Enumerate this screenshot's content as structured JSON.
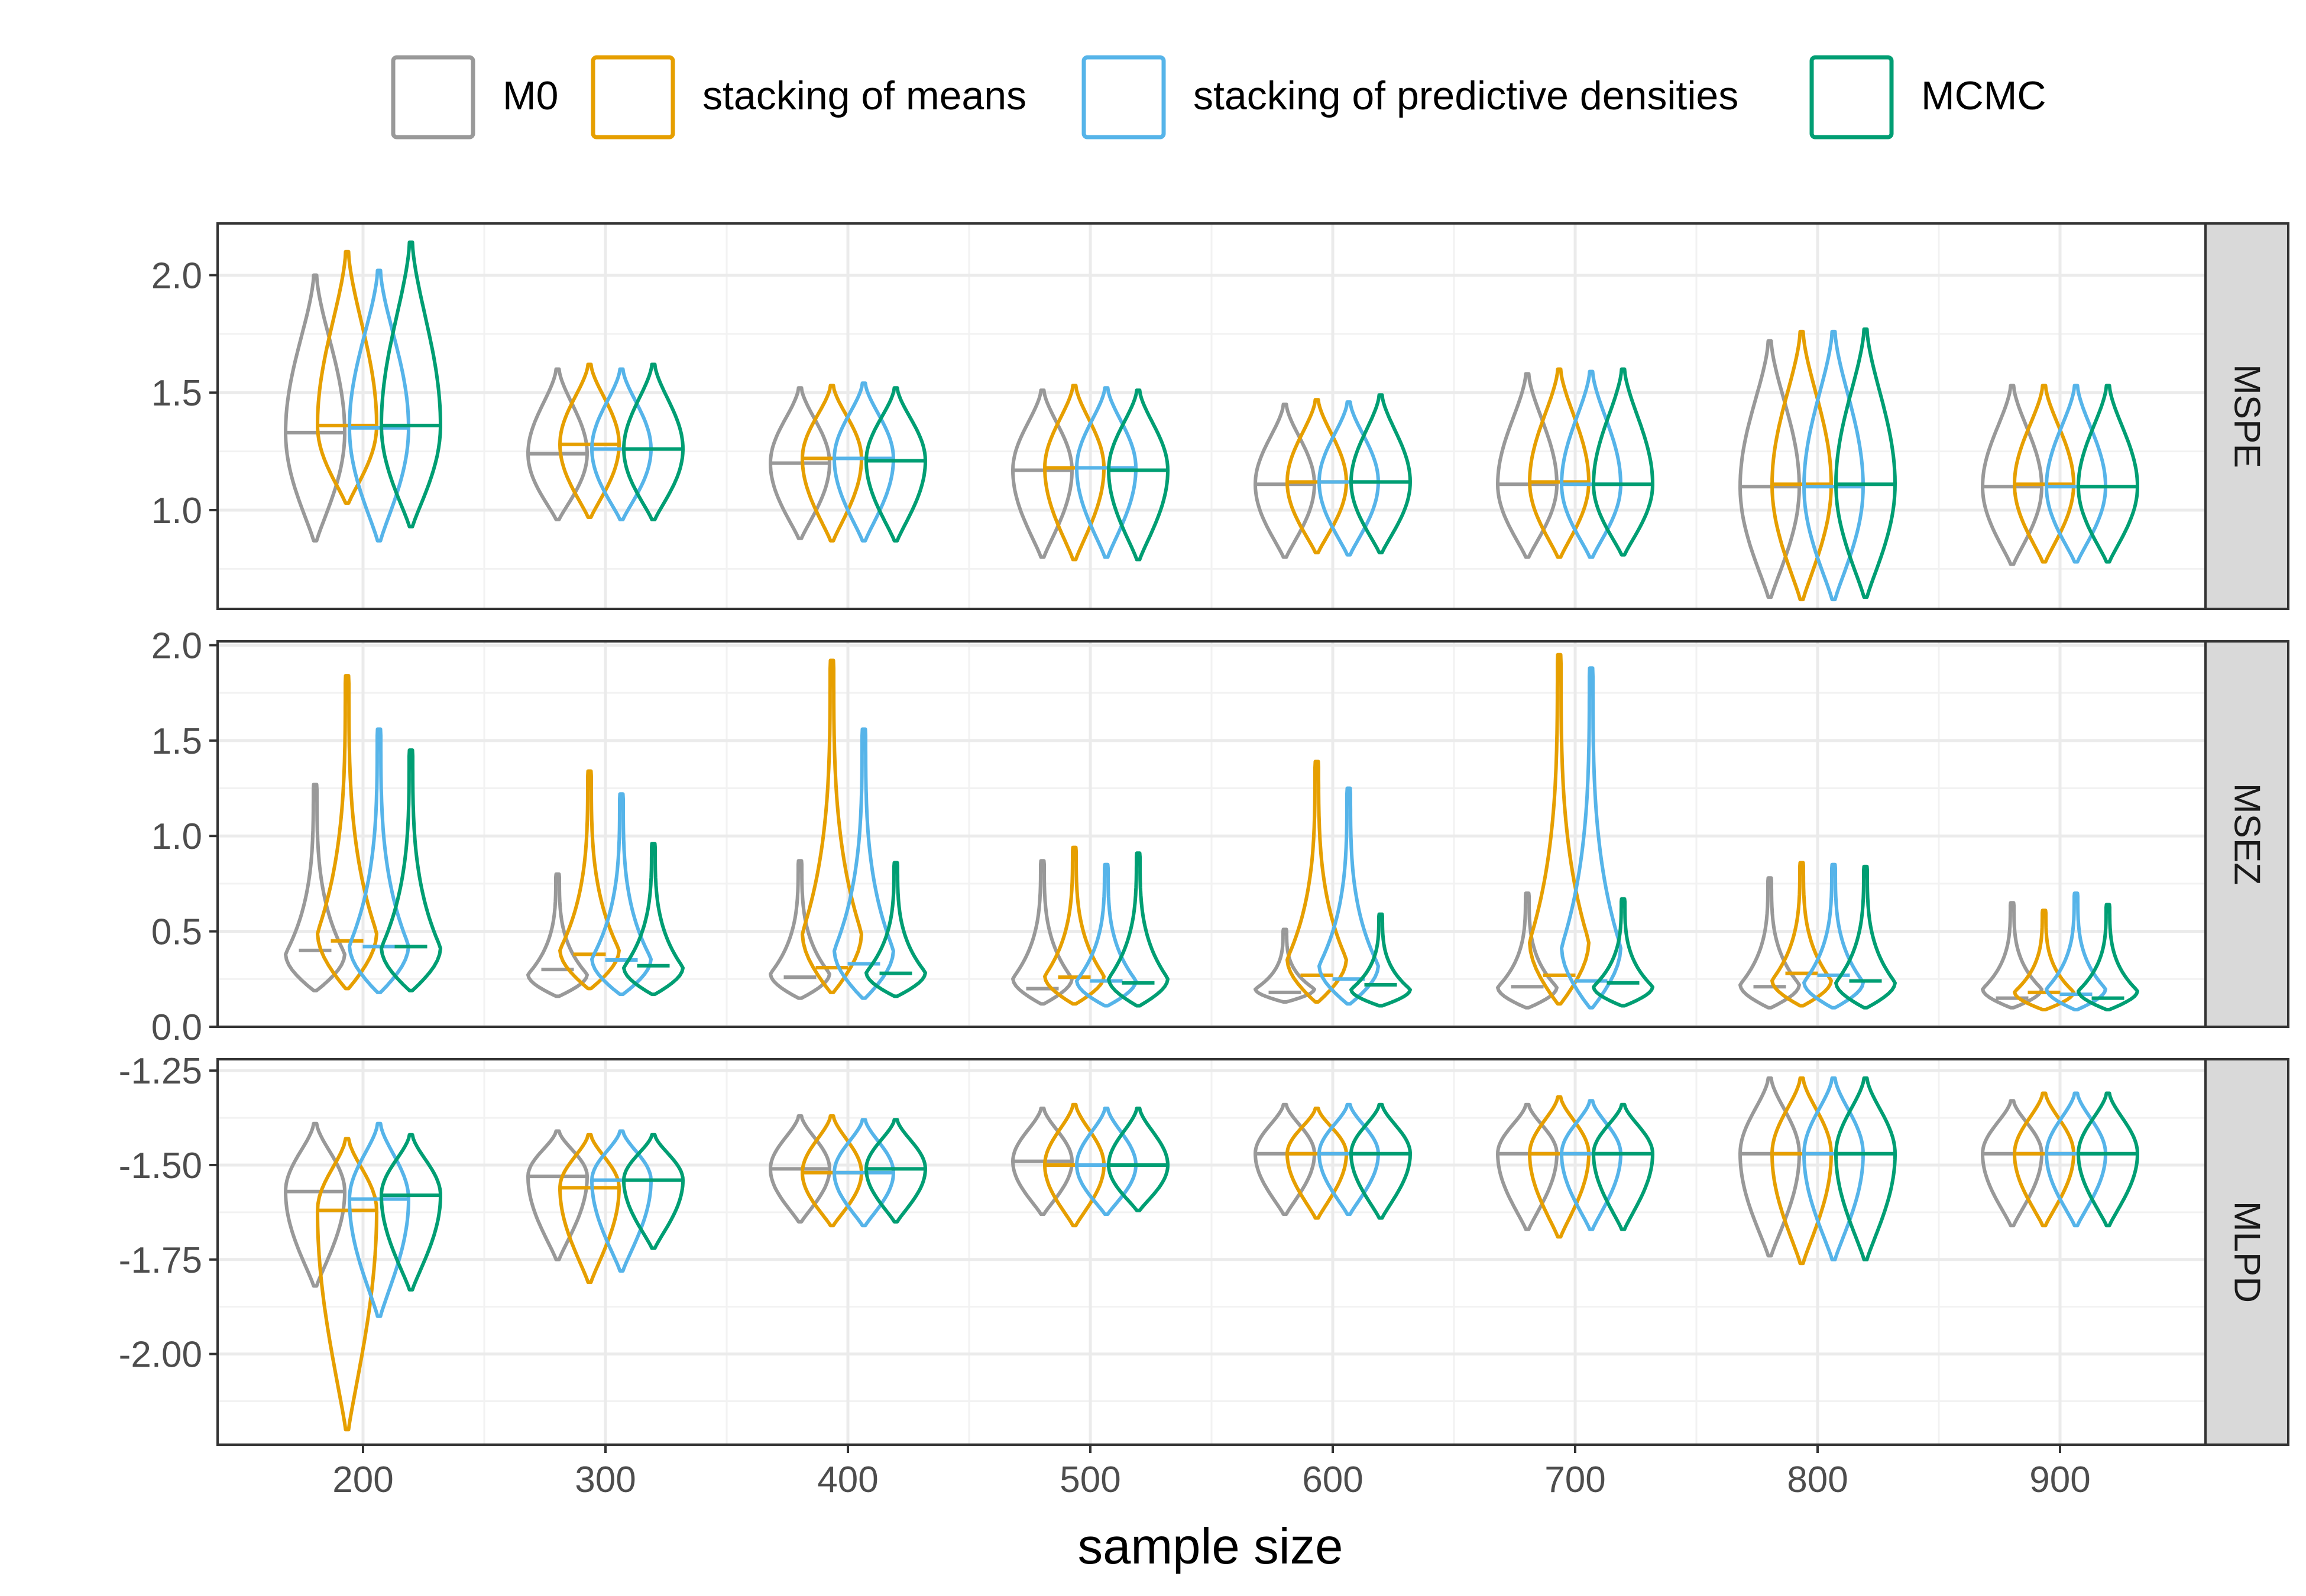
{
  "chart_data": {
    "type": "violin",
    "xlabel": "sample size",
    "ylabel": "",
    "x_ticks": [
      "200",
      "300",
      "400",
      "500",
      "600",
      "700",
      "800",
      "900"
    ],
    "x_range": [
      140,
      960
    ],
    "sample_sizes": [
      200,
      300,
      400,
      500,
      600,
      700,
      800,
      900
    ],
    "legend": {
      "position": "top",
      "entries": [
        {
          "name": "M0",
          "color": "#999999"
        },
        {
          "name": "stacking of means",
          "color": "#E69F00"
        },
        {
          "name": "stacking of predictive densities",
          "color": "#56B4E9"
        },
        {
          "name": "MCMC",
          "color": "#009E73"
        }
      ]
    },
    "panels": [
      {
        "strip": "MSPE",
        "ylim": [
          0.58,
          2.22
        ],
        "y_ticks": [
          "1.0",
          "1.5",
          "2.0"
        ],
        "y_tick_values": [
          1.0,
          1.5,
          2.0
        ],
        "shape": "symmetric",
        "series": [
          {
            "name": "M0",
            "median": [
              1.33,
              1.24,
              1.2,
              1.17,
              1.11,
              1.11,
              1.1,
              1.1
            ],
            "min": [
              0.87,
              0.96,
              0.88,
              0.8,
              0.8,
              0.8,
              0.63,
              0.77
            ],
            "max": [
              2.0,
              1.6,
              1.52,
              1.51,
              1.45,
              1.58,
              1.72,
              1.53
            ]
          },
          {
            "name": "stacking of means",
            "median": [
              1.36,
              1.28,
              1.22,
              1.18,
              1.12,
              1.12,
              1.11,
              1.11
            ],
            "min": [
              1.03,
              0.97,
              0.87,
              0.79,
              0.82,
              0.8,
              0.62,
              0.78
            ],
            "max": [
              2.1,
              1.62,
              1.53,
              1.53,
              1.47,
              1.6,
              1.76,
              1.53
            ]
          },
          {
            "name": "stacking of predictive densities",
            "median": [
              1.35,
              1.26,
              1.22,
              1.18,
              1.12,
              1.11,
              1.1,
              1.1
            ],
            "min": [
              0.87,
              0.96,
              0.87,
              0.8,
              0.81,
              0.8,
              0.62,
              0.78
            ],
            "max": [
              2.02,
              1.6,
              1.54,
              1.52,
              1.46,
              1.59,
              1.76,
              1.53
            ]
          },
          {
            "name": "MCMC",
            "median": [
              1.36,
              1.26,
              1.21,
              1.17,
              1.12,
              1.11,
              1.11,
              1.1
            ],
            "min": [
              0.93,
              0.96,
              0.87,
              0.79,
              0.82,
              0.81,
              0.63,
              0.78
            ],
            "max": [
              2.14,
              1.62,
              1.52,
              1.51,
              1.49,
              1.6,
              1.77,
              1.53
            ]
          }
        ]
      },
      {
        "strip": "MSEZ",
        "ylim": [
          0.0,
          2.02
        ],
        "y_ticks": [
          "0.0",
          "0.5",
          "1.0",
          "1.5",
          "2.0"
        ],
        "y_tick_values": [
          0.0,
          0.5,
          1.0,
          1.5,
          2.0
        ],
        "shape": "skewed",
        "series": [
          {
            "name": "M0",
            "median": [
              0.4,
              0.3,
              0.26,
              0.2,
              0.18,
              0.21,
              0.21,
              0.15
            ],
            "min": [
              0.19,
              0.16,
              0.15,
              0.12,
              0.13,
              0.1,
              0.1,
              0.1
            ],
            "max": [
              1.27,
              0.8,
              0.87,
              0.87,
              0.51,
              0.7,
              0.78,
              0.65
            ]
          },
          {
            "name": "stacking of means",
            "median": [
              0.45,
              0.38,
              0.31,
              0.26,
              0.27,
              0.27,
              0.28,
              0.18
            ],
            "min": [
              0.2,
              0.2,
              0.18,
              0.12,
              0.13,
              0.12,
              0.11,
              0.09
            ],
            "max": [
              1.84,
              1.34,
              1.92,
              0.94,
              1.39,
              1.95,
              0.86,
              0.61
            ]
          },
          {
            "name": "stacking of predictive densities",
            "median": [
              0.42,
              0.35,
              0.33,
              0.24,
              0.25,
              0.24,
              0.27,
              0.17
            ],
            "min": [
              0.18,
              0.17,
              0.15,
              0.11,
              0.12,
              0.1,
              0.1,
              0.09
            ],
            "max": [
              1.56,
              1.22,
              1.56,
              0.85,
              1.25,
              1.88,
              0.85,
              0.7
            ]
          },
          {
            "name": "MCMC",
            "median": [
              0.42,
              0.32,
              0.28,
              0.23,
              0.22,
              0.23,
              0.24,
              0.15
            ],
            "min": [
              0.19,
              0.17,
              0.16,
              0.11,
              0.11,
              0.11,
              0.1,
              0.09
            ],
            "max": [
              1.45,
              0.96,
              0.86,
              0.91,
              0.59,
              0.67,
              0.84,
              0.64
            ]
          }
        ]
      },
      {
        "strip": "MLPD",
        "ylim": [
          -2.24,
          -1.22
        ],
        "y_ticks": [
          "-2.00",
          "-1.75",
          "-1.50",
          "-1.25"
        ],
        "y_tick_values": [
          -2.0,
          -1.75,
          -1.5,
          -1.25
        ],
        "shape": "symmetric",
        "series": [
          {
            "name": "M0",
            "median": [
              -1.57,
              -1.53,
              -1.51,
              -1.49,
              -1.47,
              -1.47,
              -1.47,
              -1.47
            ],
            "min": [
              -1.82,
              -1.75,
              -1.65,
              -1.63,
              -1.63,
              -1.67,
              -1.74,
              -1.66
            ],
            "max": [
              -1.39,
              -1.41,
              -1.37,
              -1.35,
              -1.34,
              -1.34,
              -1.27,
              -1.33
            ]
          },
          {
            "name": "stacking of means",
            "median": [
              -1.62,
              -1.56,
              -1.52,
              -1.5,
              -1.47,
              -1.47,
              -1.47,
              -1.47
            ],
            "min": [
              -2.2,
              -1.81,
              -1.66,
              -1.66,
              -1.64,
              -1.69,
              -1.76,
              -1.66
            ],
            "max": [
              -1.43,
              -1.42,
              -1.37,
              -1.34,
              -1.35,
              -1.32,
              -1.27,
              -1.31
            ]
          },
          {
            "name": "stacking of predictive densities",
            "median": [
              -1.59,
              -1.54,
              -1.52,
              -1.5,
              -1.47,
              -1.47,
              -1.47,
              -1.47
            ],
            "min": [
              -1.9,
              -1.78,
              -1.66,
              -1.63,
              -1.63,
              -1.67,
              -1.75,
              -1.66
            ],
            "max": [
              -1.39,
              -1.41,
              -1.38,
              -1.35,
              -1.34,
              -1.33,
              -1.27,
              -1.31
            ]
          },
          {
            "name": "MCMC",
            "median": [
              -1.58,
              -1.54,
              -1.51,
              -1.5,
              -1.47,
              -1.47,
              -1.47,
              -1.47
            ],
            "min": [
              -1.83,
              -1.72,
              -1.65,
              -1.62,
              -1.64,
              -1.67,
              -1.75,
              -1.66
            ],
            "max": [
              -1.42,
              -1.42,
              -1.38,
              -1.35,
              -1.34,
              -1.34,
              -1.27,
              -1.31
            ]
          }
        ]
      }
    ]
  }
}
